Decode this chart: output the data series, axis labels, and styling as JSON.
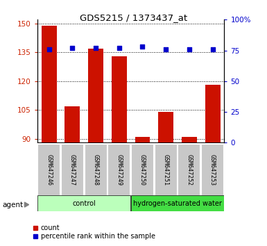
{
  "title": "GDS5215 / 1373437_at",
  "samples": [
    "GSM647246",
    "GSM647247",
    "GSM647248",
    "GSM647249",
    "GSM647250",
    "GSM647251",
    "GSM647252",
    "GSM647253"
  ],
  "counts": [
    149,
    107,
    137,
    133,
    91,
    104,
    91,
    118
  ],
  "percentile_ranks": [
    76,
    77,
    77,
    77,
    78,
    76,
    76,
    76
  ],
  "ylim_left": [
    88,
    152
  ],
  "ylim_right": [
    0,
    100
  ],
  "yticks_left": [
    90,
    105,
    120,
    135,
    150
  ],
  "yticks_right": [
    0,
    25,
    50,
    75,
    100
  ],
  "ytick_labels_right": [
    "0",
    "25",
    "50",
    "75",
    "100%"
  ],
  "bar_color": "#cc1100",
  "dot_color": "#0000cc",
  "bar_bottom": 88,
  "groups": [
    {
      "label": "control",
      "indices": [
        0,
        1,
        2,
        3
      ],
      "color": "#bbffbb"
    },
    {
      "label": "hydrogen-saturated water",
      "indices": [
        4,
        5,
        6,
        7
      ],
      "color": "#44dd44"
    }
  ],
  "agent_label": "agent",
  "legend_count_label": "count",
  "legend_pct_label": "percentile rank within the sample",
  "grid_color": "#000000",
  "tick_label_color_left": "#cc2200",
  "tick_label_color_right": "#0000cc",
  "plot_bg": "#ffffff",
  "xticklabels_bg": "#c8c8c8",
  "border_color": "#000000"
}
